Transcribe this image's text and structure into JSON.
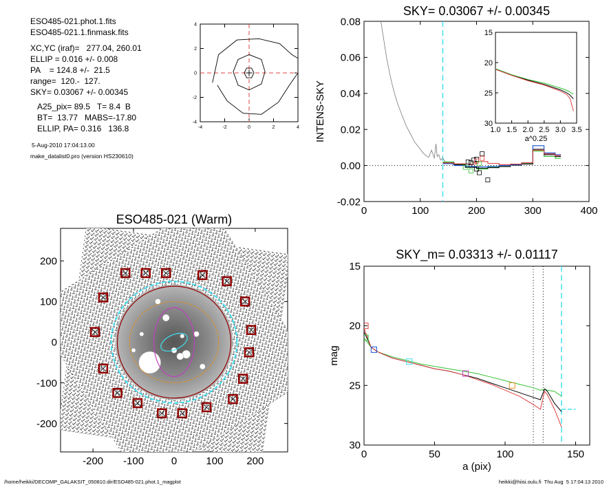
{
  "info": {
    "lines": [
      "ESO485-021.phot.1.fits",
      "ESO485-021.1.finmask.fits",
      "XC,YC (iraf)=   277.04, 260.01",
      "ELLIP = 0.016 +/- 0.008",
      "PA    = 124.8 +/-  21.5",
      "range=  120.-  127.",
      "SKY= 0.03067 +/- 0.00345",
      "A25_pix= 89.5   T= 8.4  B",
      "BT=  13.77   MABS=-17.80",
      "ELLIP, PA= 0.316   136.8"
    ],
    "small_lines": [
      "5-Aug-2010 17:04:13.00",
      "make_datalist0.pro (version HS230610)"
    ]
  },
  "footer": {
    "left": "/home/heikki/DECOMP_GALAKSIT_050810.dir/ESO485-021.phot.1_magplot",
    "right": "heikki@hiisi.oulu.fi  Thu Aug  5 17:04:13 2010"
  },
  "colors": {
    "red": "#e04040",
    "green": "#30c030",
    "blue": "#1050d0",
    "cyan": "#40e0f0",
    "magenta": "#c040c0",
    "orange": "#e09020",
    "dark_red": "#900000",
    "gray": "#777777"
  },
  "chart_data": [
    {
      "id": "contour",
      "type": "contour",
      "title": "",
      "xlabel": "",
      "ylabel": "",
      "xlim": [
        -4,
        4
      ],
      "ylim": [
        -4,
        4
      ],
      "xticks": [
        "-4",
        "-2",
        "0",
        "2",
        "4"
      ],
      "yticks": [
        "-4",
        "-2",
        "0",
        "2",
        "4"
      ],
      "center": [
        0,
        0
      ],
      "contours": [
        [
          [
            -0.4,
            0
          ],
          [
            -0.2,
            0.4
          ],
          [
            0.2,
            0.4
          ],
          [
            0.4,
            0
          ],
          [
            0.2,
            -0.4
          ],
          [
            -0.2,
            -0.4
          ],
          [
            -0.4,
            0
          ]
        ],
        [
          [
            -1.3,
            0.1
          ],
          [
            -0.9,
            1.1
          ],
          [
            0,
            1.5
          ],
          [
            1,
            1.1
          ],
          [
            1.3,
            0.1
          ],
          [
            1,
            -0.9
          ],
          [
            0,
            -1.4
          ],
          [
            -0.9,
            -1
          ],
          [
            -1.3,
            0.1
          ]
        ],
        [
          [
            -3,
            -0.8
          ],
          [
            -2.5,
            1.5
          ],
          [
            -1,
            2.7
          ],
          [
            0.8,
            2.8
          ],
          [
            2.5,
            2.4
          ],
          [
            3.5,
            1.5
          ],
          [
            4,
            1.2
          ]
        ],
        [
          [
            4,
            0
          ],
          [
            3.3,
            -1
          ],
          [
            2.4,
            -2.4
          ],
          [
            1,
            -3.4
          ],
          [
            -0.5,
            -3.3
          ],
          [
            -1.8,
            -2.3
          ],
          [
            -2.6,
            -1
          ]
        ]
      ]
    },
    {
      "id": "intensity",
      "type": "line",
      "title": "SKY= 0.03067 +/- 0.00345",
      "xlabel": "",
      "ylabel": "INTENS-SKY",
      "xlim": [
        0,
        400
      ],
      "ylim": [
        -0.02,
        0.08
      ],
      "xticks": [
        "0",
        "100",
        "200",
        "300",
        "400"
      ],
      "yticks": [
        "-0.02",
        "0.00",
        "0.02",
        "0.04",
        "0.06",
        "0.08"
      ],
      "vline_cyan": 140,
      "series": [
        {
          "color": "gray",
          "x": [
            30,
            35,
            40,
            45,
            50,
            55,
            60,
            65,
            70,
            75,
            80,
            85,
            90,
            95,
            100,
            105,
            110,
            115,
            120,
            125,
            128,
            130,
            133,
            136,
            140,
            145,
            150,
            155,
            160,
            165,
            170
          ],
          "y": [
            0.08,
            0.07,
            0.06,
            0.052,
            0.045,
            0.039,
            0.034,
            0.03,
            0.026,
            0.022,
            0.019,
            0.016,
            0.013,
            0.011,
            0.009,
            0.007,
            0.0055,
            0.0045,
            0.0085,
            0.004,
            0.012,
            0.005,
            0.006,
            0.003,
            0.004,
            0.002,
            0.001,
            0.001,
            0.0005,
            0.0003,
            0.0002
          ]
        },
        {
          "color": "green",
          "x": [
            140,
            160,
            180,
            200,
            220,
            240,
            260,
            280,
            300,
            320,
            340
          ],
          "y": [
            0.002,
            0.0005,
            -0.001,
            -0.002,
            -0.001,
            -0.0005,
            0.0005,
            0.001,
            0.008,
            0.005,
            0.004
          ]
        },
        {
          "color": "black",
          "x": [
            140,
            160,
            180,
            200,
            220,
            240,
            260,
            280,
            300,
            320,
            340
          ],
          "y": [
            0.0015,
            0.0005,
            -0.001,
            -0.0015,
            -0.0012,
            -0.0006,
            0.0002,
            0.0008,
            0.009,
            0.006,
            0.005
          ]
        },
        {
          "color": "blue",
          "x": [
            140,
            160,
            180,
            200,
            220,
            240,
            260,
            280,
            300,
            320,
            340
          ],
          "y": [
            0.001,
            0.0,
            -0.0005,
            -0.0008,
            -0.0005,
            0.0,
            0.0005,
            0.0015,
            0.011,
            0.007,
            0.006
          ]
        },
        {
          "color": "red",
          "x": [
            140,
            160,
            180,
            200,
            220,
            240,
            260,
            280,
            300,
            320,
            340
          ],
          "y": [
            0.0015,
            0.001,
            0.0008,
            0.0022,
            0.0012,
            0.0005,
            0.0008,
            0.0015,
            0.0085,
            0.0065,
            0.0055
          ]
        }
      ],
      "markers": [
        {
          "color": "black",
          "x": [
            210,
            195,
            190,
            200,
            205,
            185,
            220,
            200
          ],
          "y": [
            0.0065,
            0.003,
            0.0015,
            0.0035,
            -0.004,
            0.002,
            -0.008,
            -0.002
          ]
        },
        {
          "color": "red",
          "x": [
            210,
            200
          ],
          "y": [
            0.004,
            0.0025
          ]
        },
        {
          "color": "green",
          "x": [
            180,
            205,
            190
          ],
          "y": [
            -0.001,
            0.001,
            -0.003
          ]
        }
      ],
      "inset": {
        "xlabel": "a^0.25",
        "xlim": [
          1.0,
          3.5
        ],
        "ylim": [
          15,
          30
        ],
        "xticks": [
          "1.0",
          "1.5",
          "2.0",
          "2.5",
          "3.0",
          "3.5"
        ],
        "yticks": [
          "15",
          "20",
          "25",
          "30"
        ],
        "series": [
          {
            "color": "green",
            "x": [
              1.0,
              1.5,
              2.0,
              2.5,
              3.0,
              3.2,
              3.3,
              3.4
            ],
            "y": [
              21.0,
              22.0,
              22.8,
              23.4,
              24.2,
              24.6,
              24.9,
              25.2
            ]
          },
          {
            "color": "black",
            "x": [
              1.0,
              1.5,
              2.0,
              2.5,
              3.0,
              3.2,
              3.3,
              3.4
            ],
            "y": [
              21.1,
              22.1,
              22.9,
              23.6,
              24.5,
              25.0,
              25.4,
              26.0
            ]
          },
          {
            "color": "red",
            "x": [
              1.0,
              1.5,
              2.0,
              2.5,
              3.0,
              3.2,
              3.3,
              3.4
            ],
            "y": [
              21.1,
              22.1,
              23.0,
              23.7,
              24.7,
              25.3,
              26.0,
              28.0
            ]
          }
        ]
      }
    },
    {
      "id": "image",
      "type": "image",
      "title": "ESO485-021 (Warm)",
      "xlabel": "",
      "ylabel": "",
      "xlim": [
        -280,
        280
      ],
      "ylim": [
        -270,
        280
      ],
      "xticks": [
        "-200",
        "-100",
        "0",
        "100",
        "200"
      ],
      "yticks": [
        "-200",
        "-100",
        "0",
        "100",
        "200"
      ],
      "sky_boxes": [
        [
          -20,
          170
        ],
        [
          -70,
          170
        ],
        [
          -120,
          170
        ],
        [
          -175,
          110
        ],
        [
          -195,
          25
        ],
        [
          -175,
          -65
        ],
        [
          -140,
          -125
        ],
        [
          -90,
          -150
        ],
        [
          -30,
          -175
        ],
        [
          20,
          -175
        ],
        [
          80,
          -160
        ],
        [
          145,
          -140
        ],
        [
          170,
          -90
        ],
        [
          185,
          -25
        ],
        [
          190,
          30
        ],
        [
          175,
          100
        ],
        [
          130,
          150
        ],
        [
          70,
          165
        ]
      ],
      "ellipses": [
        {
          "color": "cyan",
          "rx": 155,
          "ry": 150
        },
        {
          "color": "dark_red",
          "rx": 140,
          "ry": 138
        },
        {
          "color": "orange",
          "rx": 110,
          "ry": 100
        },
        {
          "color": "magenta",
          "rx": 50,
          "ry": 85
        },
        {
          "color": "cyan",
          "rx": 35,
          "ry": 18
        }
      ]
    },
    {
      "id": "magnitude",
      "type": "line",
      "title": "SKY_m=  0.03313 +/- 0.01117",
      "xlabel": "a (pix)",
      "ylabel": "mag",
      "xlim": [
        0,
        160
      ],
      "ylim": [
        30,
        15
      ],
      "xticks": [
        "0",
        "50",
        "100",
        "150"
      ],
      "yticks": [
        "15",
        "20",
        "25",
        "30"
      ],
      "vlines_dotted": [
        120,
        127
      ],
      "vline_cyan": 140,
      "hline_cyan": {
        "y": 27.0,
        "x": [
          140,
          150
        ]
      },
      "series": [
        {
          "color": "green",
          "x": [
            0,
            5,
            10,
            20,
            30,
            40,
            50,
            60,
            70,
            80,
            90,
            100,
            110,
            120,
            125,
            128,
            130,
            135,
            140
          ],
          "y": [
            21.0,
            21.8,
            22.2,
            22.6,
            22.9,
            23.2,
            23.4,
            23.6,
            23.8,
            24.0,
            24.3,
            24.6,
            24.9,
            25.2,
            25.4,
            25.3,
            25.4,
            25.5,
            25.9
          ]
        },
        {
          "color": "black",
          "x": [
            0,
            5,
            10,
            20,
            30,
            40,
            50,
            60,
            70,
            80,
            90,
            100,
            110,
            120,
            125,
            128,
            130,
            135,
            140
          ],
          "y": [
            20.5,
            21.8,
            22.2,
            22.7,
            23.0,
            23.3,
            23.6,
            23.8,
            24.1,
            24.4,
            24.8,
            25.2,
            25.6,
            26.0,
            26.2,
            25.3,
            25.5,
            26.5,
            27.2
          ]
        },
        {
          "color": "red",
          "x": [
            0,
            5,
            10,
            20,
            30,
            40,
            50,
            60,
            70,
            80,
            90,
            100,
            110,
            120,
            125,
            128,
            130,
            135,
            140
          ],
          "y": [
            20.2,
            21.8,
            22.2,
            22.7,
            23.0,
            23.3,
            23.6,
            23.8,
            24.1,
            24.5,
            24.9,
            25.4,
            25.9,
            26.6,
            27.0,
            25.5,
            25.8,
            27.0,
            28.5
          ]
        }
      ],
      "markers": [
        {
          "color": "red",
          "x": [
            1
          ],
          "y": [
            20.0
          ]
        },
        {
          "color": "green",
          "x": [
            1
          ],
          "y": [
            21.0
          ]
        },
        {
          "color": "blue",
          "x": [
            7
          ],
          "y": [
            22.0
          ]
        },
        {
          "color": "cyan",
          "x": [
            32
          ],
          "y": [
            23.0
          ]
        },
        {
          "color": "magenta",
          "x": [
            72
          ],
          "y": [
            24.0
          ]
        },
        {
          "color": "orange",
          "x": [
            105
          ],
          "y": [
            25.0
          ]
        }
      ]
    }
  ]
}
